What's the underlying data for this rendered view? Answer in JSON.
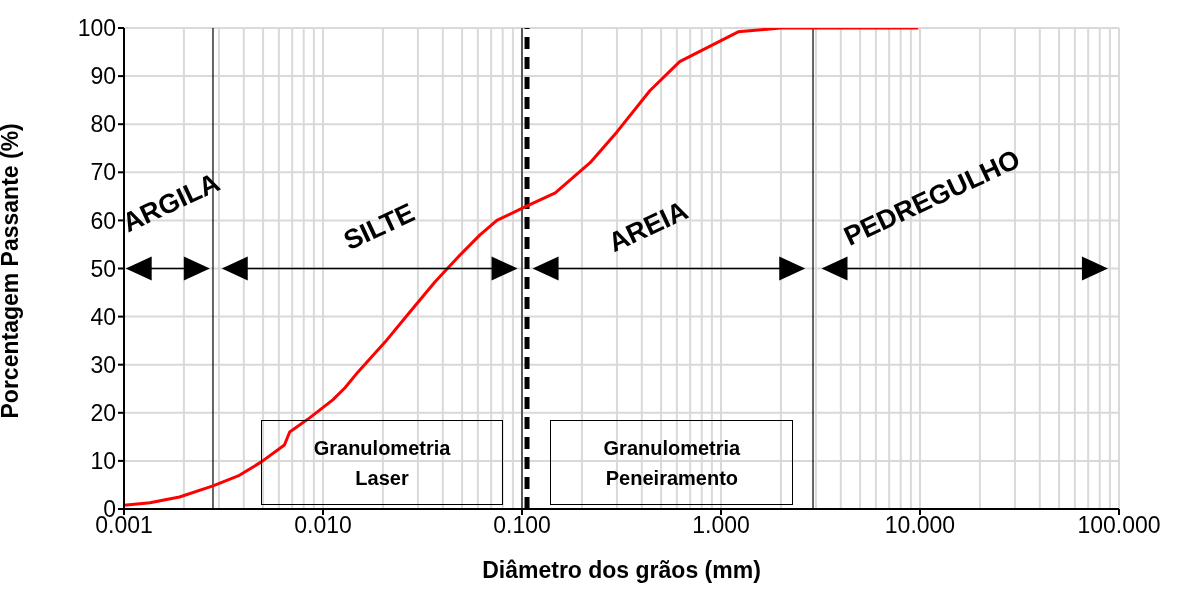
{
  "chart_data": {
    "type": "line",
    "xlabel": "Diâmetro dos grãos (mm)",
    "ylabel": "Porcentagem Passante  (%)",
    "x": [
      0.001,
      0.00135,
      0.0019,
      0.0028,
      0.0038,
      0.0049,
      0.0064,
      0.0068,
      0.0086,
      0.0112,
      0.0129,
      0.015,
      0.0205,
      0.0274,
      0.0365,
      0.0488,
      0.0615,
      0.0748,
      0.101,
      0.147,
      0.22,
      0.3,
      0.44,
      0.62,
      1.22,
      2.0,
      9.8
    ],
    "series": [
      {
        "color": "#ff0000",
        "values": [
          0.8,
          1.3,
          2.5,
          4.8,
          7,
          9.8,
          13.3,
          16,
          19,
          22.7,
          25.2,
          28.5,
          34.7,
          41,
          47.2,
          52.8,
          57,
          60,
          62.6,
          65.7,
          72,
          78.4,
          87,
          93,
          99.2,
          100,
          100
        ]
      }
    ],
    "log": "x",
    "xlim": [
      0.001,
      100
    ],
    "xticks": [
      {
        "value": 0.001,
        "label": "0.001"
      },
      {
        "value": 0.01,
        "label": "0.010"
      },
      {
        "value": 0.1,
        "label": "0.100"
      },
      {
        "value": 1,
        "label": "1.000"
      },
      {
        "value": 10,
        "label": "10.000"
      },
      {
        "value": 100,
        "label": "100.000"
      }
    ],
    "ylim": [
      0,
      100
    ],
    "yticks": [
      0,
      10,
      20,
      30,
      40,
      50,
      60,
      70,
      80,
      90,
      100
    ],
    "grid": true,
    "marker": "none",
    "line_style": "solid",
    "ref_lines": [
      {
        "axis": "x",
        "value": 0.0028,
        "color": "#000000",
        "line_style": "solid"
      },
      {
        "axis": "x",
        "value": 0.1,
        "color": "#000000",
        "line_style": "solid"
      },
      {
        "axis": "x",
        "value": 0.106,
        "color": "#000000",
        "line_style": "dashed"
      },
      {
        "axis": "x",
        "value": 2.9,
        "color": "#000000",
        "line_style": "solid"
      }
    ],
    "annotations": [
      "ARGILA",
      "SILTE",
      "AREIA",
      "PEDREGULHO",
      "Granulometria Laser",
      "Granulometria Peneiramento"
    ]
  }
}
